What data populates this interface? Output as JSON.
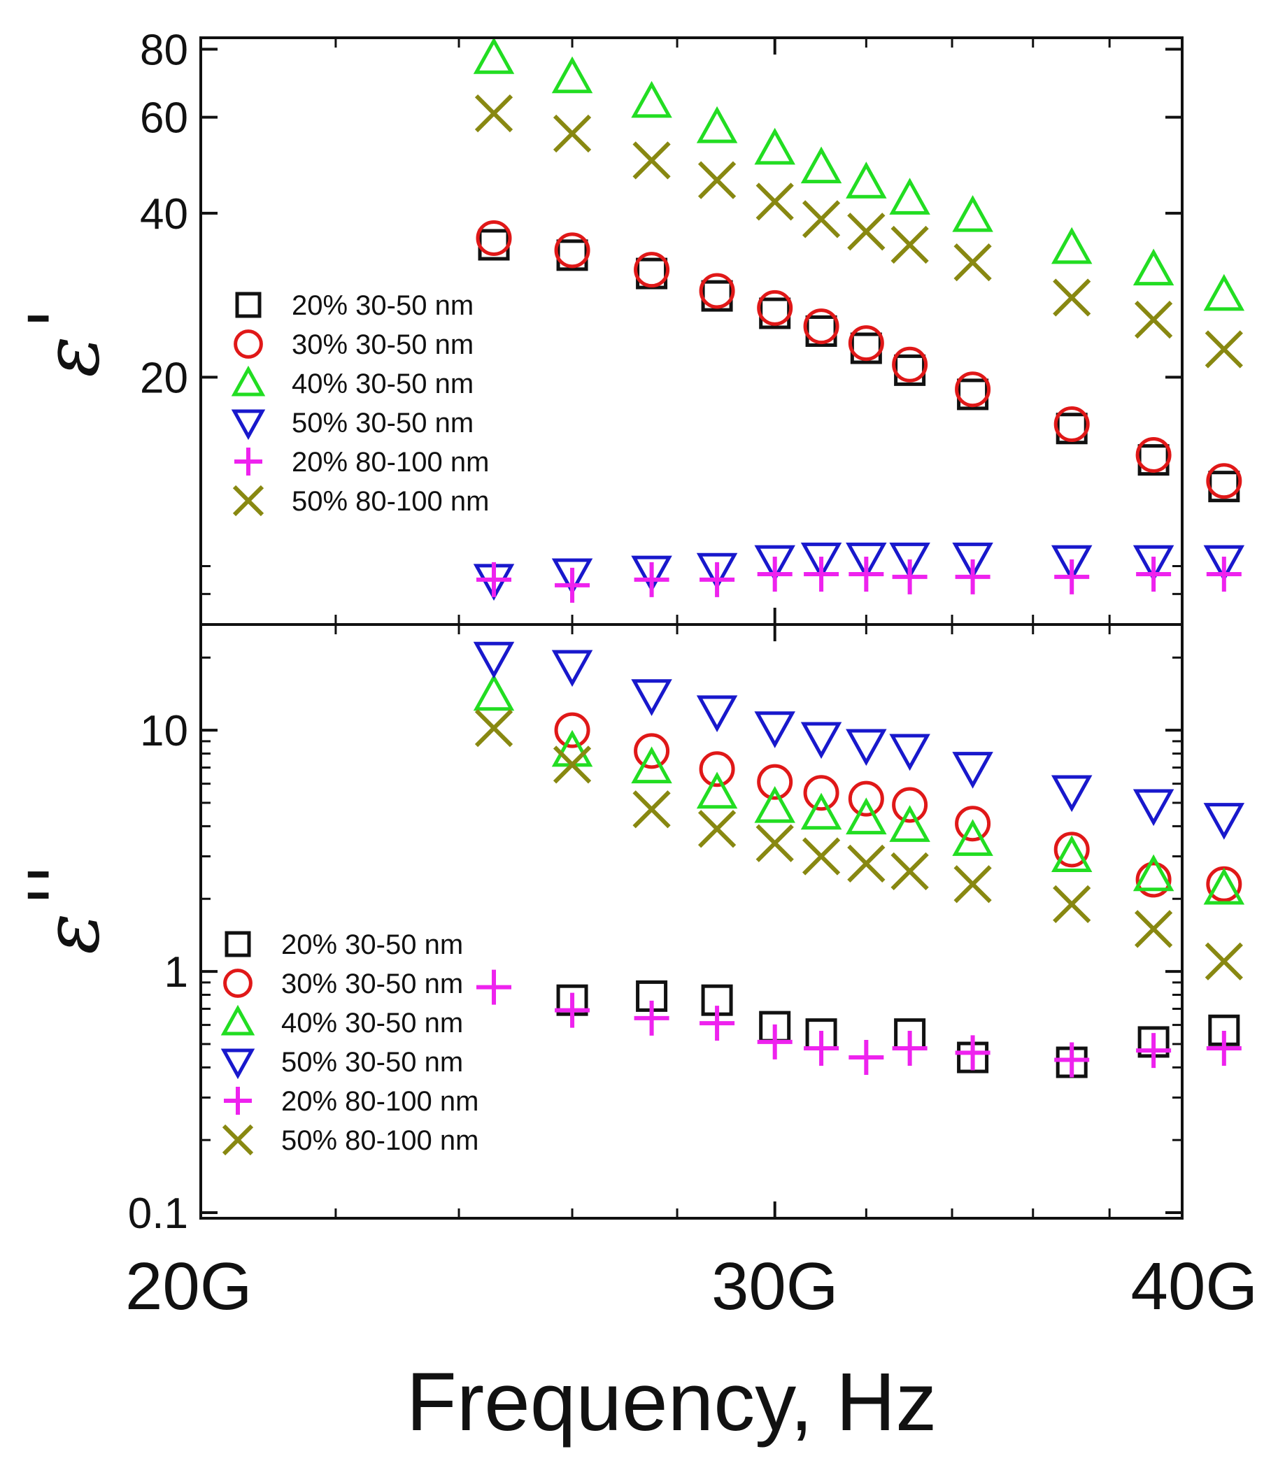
{
  "chart_data": {
    "type": "scatter",
    "xlabel": "Frequency, Hz",
    "x_axis": {
      "scale": "log",
      "range": [
        20,
        40
      ],
      "major_ticks": [
        20,
        30,
        40
      ],
      "minor_ticks": [
        22,
        24,
        26,
        28,
        32,
        34,
        36,
        38
      ],
      "tick_labels": [
        "20G",
        "30G",
        "40G"
      ]
    },
    "x": [
      24.6,
      26.0,
      27.5,
      28.8,
      30.0,
      31.0,
      32.0,
      33.0,
      34.5,
      37.0,
      39.2,
      41.2
    ],
    "panels": [
      {
        "id": "top",
        "ylabel_symbol": "ε",
        "ylabel_prime": "'",
        "y_scale": "log",
        "y_range": [
          7.2,
          82
        ],
        "y_major_ticks": [
          20,
          40,
          60,
          80
        ],
        "y_tick_labels": [
          "20",
          "40",
          "60",
          "80"
        ],
        "legend": [
          "20% 30-50 nm",
          "30% 30-50 nm",
          "40% 30-50 nm",
          "50% 30-50 nm",
          "20% 80-100 nm",
          "50% 80-100 nm"
        ],
        "series": [
          {
            "name": "20% 30-50 nm",
            "marker": "square",
            "color": "#111111",
            "values": [
              35,
              33.5,
              31,
              28.2,
              26.2,
              24.3,
              22.6,
              20.6,
              18.6,
              16.1,
              14.1,
              12.6
            ]
          },
          {
            "name": "30% 30-50 nm",
            "marker": "circle",
            "color": "#e01818",
            "values": [
              36,
              34.2,
              31.5,
              28.8,
              26.8,
              24.8,
              23.1,
              21.1,
              19,
              16.4,
              14.4,
              12.9
            ]
          },
          {
            "name": "40% 30-50 nm",
            "marker": "triangle-up",
            "color": "#22dd22",
            "values": [
              77,
              71,
              64,
              57.5,
              52.5,
              48.5,
              45.5,
              42.5,
              39.5,
              34.5,
              31.5,
              28.3
            ]
          },
          {
            "name": "50% 30-50 nm",
            "marker": "triangle-down",
            "color": "#1818cc",
            "values": [
              8.5,
              8.7,
              8.8,
              8.9,
              9.2,
              9.3,
              9.3,
              9.3,
              9.3,
              9.2,
              9.2,
              9.2
            ]
          },
          {
            "name": "20% 80-100 nm",
            "marker": "plus",
            "color": "#ee22ee",
            "values": [
              8.5,
              8.3,
              8.5,
              8.5,
              8.7,
              8.7,
              8.7,
              8.6,
              8.6,
              8.6,
              8.7,
              8.7
            ]
          },
          {
            "name": "50% 80-100 nm",
            "marker": "x",
            "color": "#888811",
            "values": [
              61,
              56,
              50,
              46,
              42,
              39,
              37,
              35,
              32.5,
              28,
              25.5,
              22.5
            ]
          }
        ]
      },
      {
        "id": "bottom",
        "ylabel_symbol": "ε",
        "ylabel_prime": "''",
        "y_scale": "log",
        "y_range": [
          0.1,
          26
        ],
        "y_major_ticks": [
          0.1,
          1,
          10
        ],
        "y_tick_labels": [
          "0.1",
          "1",
          "10"
        ],
        "legend": [
          "20% 30-50 nm",
          "30% 30-50 nm",
          "40% 30-50 nm",
          "50% 30-50 nm",
          "20% 80-100 nm",
          "50% 80-100 nm"
        ],
        "series": [
          {
            "name": "20% 30-50 nm",
            "marker": "square",
            "color": "#111111",
            "values": [
              null,
              0.76,
              0.79,
              0.76,
              0.59,
              0.55,
              null,
              0.55,
              0.44,
              0.42,
              0.51,
              0.57
            ]
          },
          {
            "name": "30% 30-50 nm",
            "marker": "circle",
            "color": "#e01818",
            "values": [
              null,
              10,
              8.2,
              6.9,
              6.1,
              5.5,
              5.2,
              4.9,
              4.1,
              3.2,
              2.4,
              2.3
            ]
          },
          {
            "name": "40% 30-50 nm",
            "marker": "triangle-up",
            "color": "#22dd22",
            "values": [
              14,
              8.2,
              7,
              5.5,
              4.8,
              4.5,
              4.3,
              4,
              3.5,
              3,
              2.5,
              2.2
            ]
          },
          {
            "name": "50% 30-50 nm",
            "marker": "triangle-down",
            "color": "#1818cc",
            "values": [
              20,
              18.5,
              14,
              12,
              10.3,
              9.3,
              8.7,
              8.3,
              7,
              5.6,
              4.9,
              4.3
            ]
          },
          {
            "name": "20% 80-100 nm",
            "marker": "plus",
            "color": "#ee22ee",
            "values": [
              0.86,
              0.69,
              0.64,
              0.61,
              0.51,
              0.48,
              0.44,
              0.48,
              0.46,
              0.43,
              0.47,
              0.48
            ]
          },
          {
            "name": "50% 80-100 nm",
            "marker": "x",
            "color": "#888811",
            "values": [
              10.2,
              7.2,
              4.7,
              3.9,
              3.4,
              3,
              2.8,
              2.6,
              2.3,
              1.9,
              1.5,
              1.1
            ]
          }
        ]
      }
    ]
  }
}
